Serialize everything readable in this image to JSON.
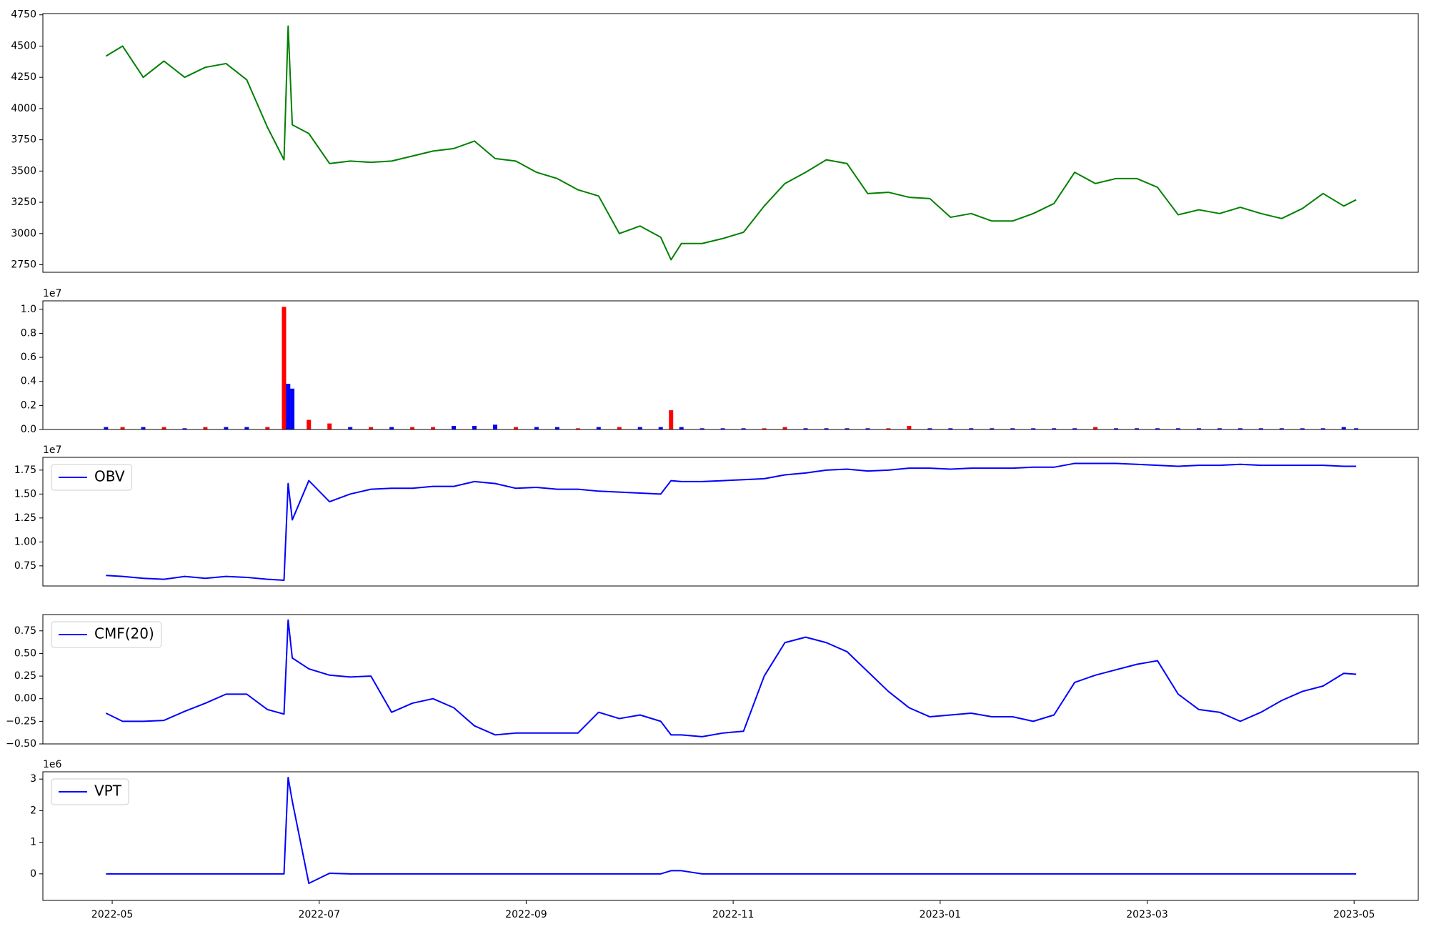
{
  "chart_data": [
    {
      "type": "line",
      "color": "#008000",
      "x": [
        -0.06,
        0.1,
        0.3,
        0.5,
        0.7,
        0.9,
        1.1,
        1.3,
        1.5,
        1.66,
        1.7,
        1.74,
        1.9,
        2.1,
        2.3,
        2.5,
        2.7,
        2.9,
        3.1,
        3.3,
        3.5,
        3.7,
        3.9,
        4.1,
        4.3,
        4.5,
        4.7,
        4.9,
        5.1,
        5.3,
        5.4,
        5.5,
        5.7,
        5.9,
        6.1,
        6.3,
        6.5,
        6.7,
        6.9,
        7.1,
        7.3,
        7.5,
        7.7,
        7.9,
        8.1,
        8.3,
        8.5,
        8.7,
        8.9,
        9.1,
        9.3,
        9.5,
        9.7,
        9.9,
        10.1,
        10.3,
        10.5,
        10.7,
        10.9,
        11.1,
        11.3,
        11.5,
        11.7,
        11.9,
        12.02
      ],
      "values": [
        4420,
        4500,
        4250,
        4380,
        4250,
        4330,
        4360,
        4230,
        3850,
        3590,
        4660,
        3870,
        3800,
        3560,
        3580,
        3570,
        3580,
        3620,
        3660,
        3680,
        3740,
        3600,
        3580,
        3490,
        3440,
        3350,
        3300,
        3000,
        3060,
        2970,
        2790,
        2920,
        2920,
        2960,
        3010,
        3220,
        3400,
        3490,
        3590,
        3560,
        3320,
        3330,
        3290,
        3280,
        3130,
        3160,
        3100,
        3100,
        3160,
        3240,
        3490,
        3400,
        3440,
        3440,
        3370,
        3150,
        3190,
        3160,
        3210,
        3160,
        3120,
        3200,
        3320,
        3220,
        3270
      ],
      "xlim": [
        -0.67,
        12.62
      ],
      "ylim": [
        2690,
        4760
      ],
      "yticks": [
        2750,
        3000,
        3250,
        3500,
        3750,
        4000,
        4250,
        4500,
        4750
      ]
    },
    {
      "type": "bar",
      "offset_label": "1e7",
      "x": [
        -0.06,
        0.1,
        0.3,
        0.5,
        0.7,
        0.9,
        1.1,
        1.3,
        1.5,
        1.66,
        1.7,
        1.74,
        1.9,
        2.1,
        2.3,
        2.5,
        2.7,
        2.9,
        3.1,
        3.3,
        3.5,
        3.7,
        3.9,
        4.1,
        4.3,
        4.5,
        4.7,
        4.9,
        5.1,
        5.3,
        5.4,
        5.5,
        5.7,
        5.9,
        6.1,
        6.3,
        6.5,
        6.7,
        6.9,
        7.1,
        7.3,
        7.5,
        7.7,
        7.9,
        8.1,
        8.3,
        8.5,
        8.7,
        8.9,
        9.1,
        9.3,
        9.5,
        9.7,
        9.9,
        10.1,
        10.3,
        10.5,
        10.7,
        10.9,
        11.1,
        11.3,
        11.5,
        11.7,
        11.9,
        12.02
      ],
      "values": [
        0.02,
        0.02,
        0.02,
        0.02,
        0.01,
        0.02,
        0.02,
        0.02,
        0.02,
        1.02,
        0.38,
        0.34,
        0.08,
        0.05,
        0.02,
        0.02,
        0.02,
        0.02,
        0.02,
        0.03,
        0.03,
        0.04,
        0.02,
        0.02,
        0.02,
        0.01,
        0.02,
        0.02,
        0.02,
        0.02,
        0.16,
        0.02,
        0.01,
        0.01,
        0.01,
        0.01,
        0.02,
        0.01,
        0.01,
        0.01,
        0.01,
        0.01,
        0.03,
        0.01,
        0.01,
        0.01,
        0.01,
        0.01,
        0.01,
        0.01,
        0.01,
        0.02,
        0.01,
        0.01,
        0.01,
        0.01,
        0.01,
        0.01,
        0.01,
        0.01,
        0.01,
        0.01,
        0.01,
        0.02,
        0.01
      ],
      "colors": [
        "blue",
        "red",
        "blue",
        "red",
        "blue",
        "red",
        "blue",
        "blue",
        "red",
        "red",
        "blue",
        "blue",
        "red",
        "red",
        "blue",
        "red",
        "blue",
        "red",
        "red",
        "blue",
        "blue",
        "blue",
        "red",
        "blue",
        "blue",
        "red",
        "blue",
        "red",
        "blue",
        "blue",
        "red",
        "blue",
        "blue",
        "blue",
        "blue",
        "red",
        "red",
        "blue",
        "blue",
        "blue",
        "blue",
        "red",
        "red",
        "blue",
        "blue",
        "blue",
        "blue",
        "blue",
        "blue",
        "blue",
        "blue",
        "red",
        "blue",
        "blue",
        "blue",
        "blue",
        "blue",
        "blue",
        "blue",
        "blue",
        "blue",
        "blue",
        "blue",
        "blue",
        "blue"
      ],
      "xlim": [
        -0.67,
        12.62
      ],
      "ylim": [
        0,
        1.07
      ],
      "yticks": [
        {
          "value": 0,
          "label": "0.0"
        },
        0.2,
        0.4,
        0.6,
        0.8,
        {
          "value": 1,
          "label": "1.0"
        }
      ]
    },
    {
      "type": "line",
      "offset_label": "1e7",
      "legend": "upper left",
      "x": [
        -0.06,
        0.1,
        0.3,
        0.5,
        0.7,
        0.9,
        1.1,
        1.3,
        1.5,
        1.66,
        1.7,
        1.74,
        1.9,
        2.1,
        2.3,
        2.5,
        2.7,
        2.9,
        3.1,
        3.3,
        3.5,
        3.7,
        3.9,
        4.1,
        4.3,
        4.5,
        4.7,
        4.9,
        5.1,
        5.3,
        5.4,
        5.5,
        5.7,
        5.9,
        6.1,
        6.3,
        6.5,
        6.7,
        6.9,
        7.1,
        7.3,
        7.5,
        7.7,
        7.9,
        8.1,
        8.3,
        8.5,
        8.7,
        8.9,
        9.1,
        9.3,
        9.5,
        9.7,
        9.9,
        10.1,
        10.3,
        10.5,
        10.7,
        10.9,
        11.1,
        11.3,
        11.5,
        11.7,
        11.9,
        12.02
      ],
      "series": [
        {
          "name": "OBV",
          "color": "#0000ff",
          "values": [
            0.65,
            0.64,
            0.62,
            0.61,
            0.64,
            0.62,
            0.64,
            0.63,
            0.61,
            0.6,
            1.61,
            1.23,
            1.64,
            1.42,
            1.5,
            1.55,
            1.56,
            1.56,
            1.58,
            1.58,
            1.63,
            1.61,
            1.56,
            1.57,
            1.55,
            1.55,
            1.53,
            1.52,
            1.51,
            1.5,
            1.64,
            1.63,
            1.63,
            1.64,
            1.65,
            1.66,
            1.7,
            1.72,
            1.75,
            1.76,
            1.74,
            1.75,
            1.77,
            1.77,
            1.76,
            1.77,
            1.77,
            1.77,
            1.78,
            1.78,
            1.82,
            1.82,
            1.82,
            1.81,
            1.8,
            1.79,
            1.8,
            1.8,
            1.81,
            1.8,
            1.8,
            1.8,
            1.8,
            1.79,
            1.79
          ]
        }
      ],
      "xlim": [
        -0.67,
        12.62
      ],
      "ylim": [
        0.54,
        1.883
      ],
      "yticks": [
        0.75,
        {
          "value": 1,
          "label": "1.00"
        },
        1.25,
        {
          "value": 1.5,
          "label": "1.50"
        },
        1.75
      ]
    },
    {
      "type": "line",
      "legend": "upper left",
      "x": [
        -0.06,
        0.1,
        0.3,
        0.5,
        0.7,
        0.9,
        1.1,
        1.3,
        1.5,
        1.66,
        1.7,
        1.74,
        1.9,
        2.1,
        2.3,
        2.5,
        2.7,
        2.9,
        3.1,
        3.3,
        3.5,
        3.7,
        3.9,
        4.1,
        4.3,
        4.5,
        4.7,
        4.9,
        5.1,
        5.3,
        5.4,
        5.5,
        5.7,
        5.9,
        6.1,
        6.3,
        6.5,
        6.7,
        6.9,
        7.1,
        7.3,
        7.5,
        7.7,
        7.9,
        8.1,
        8.3,
        8.5,
        8.7,
        8.9,
        9.1,
        9.3,
        9.5,
        9.7,
        9.9,
        10.1,
        10.3,
        10.5,
        10.7,
        10.9,
        11.1,
        11.3,
        11.5,
        11.7,
        11.9,
        12.02
      ],
      "series": [
        {
          "name": "CMF(20)",
          "color": "#0000ff",
          "values": [
            -0.16,
            -0.25,
            -0.25,
            -0.24,
            -0.14,
            -0.05,
            0.05,
            0.05,
            -0.12,
            -0.17,
            0.87,
            0.45,
            0.33,
            0.26,
            0.24,
            0.25,
            -0.15,
            -0.05,
            0,
            -0.1,
            -0.3,
            -0.4,
            -0.38,
            -0.38,
            -0.38,
            -0.38,
            -0.15,
            -0.22,
            -0.18,
            -0.25,
            -0.4,
            -0.4,
            -0.42,
            -0.38,
            -0.36,
            0.25,
            0.62,
            0.68,
            0.62,
            0.52,
            0.3,
            0.08,
            -0.1,
            -0.2,
            -0.18,
            -0.16,
            -0.2,
            -0.2,
            -0.25,
            -0.18,
            0.18,
            0.26,
            0.32,
            0.38,
            0.42,
            0.05,
            -0.12,
            -0.15,
            -0.25,
            -0.15,
            -0.02,
            0.08,
            0.14,
            0.28,
            0.27
          ]
        }
      ],
      "xlim": [
        -0.67,
        12.62
      ],
      "ylim": [
        -0.5,
        0.93
      ],
      "yticks": [
        {
          "value": -0.5,
          "label": "−0.50"
        },
        {
          "value": -0.25,
          "label": "−0.25"
        },
        {
          "value": 0,
          "label": "0.00"
        },
        0.25,
        {
          "value": 0.5,
          "label": "0.50"
        },
        0.75
      ]
    },
    {
      "type": "line",
      "offset_label": "1e6",
      "legend": "upper left",
      "x": [
        -0.06,
        0.1,
        0.3,
        0.5,
        0.7,
        0.9,
        1.1,
        1.3,
        1.5,
        1.66,
        1.7,
        1.74,
        1.9,
        2.1,
        2.3,
        2.5,
        2.7,
        2.9,
        3.1,
        3.3,
        3.5,
        3.7,
        3.9,
        4.1,
        4.3,
        4.5,
        4.7,
        4.9,
        5.1,
        5.3,
        5.4,
        5.5,
        5.7,
        5.9,
        6.1,
        6.3,
        6.5,
        6.7,
        6.9,
        7.1,
        7.3,
        7.5,
        7.7,
        7.9,
        8.1,
        8.3,
        8.5,
        8.7,
        8.9,
        9.1,
        9.3,
        9.5,
        9.7,
        9.9,
        10.1,
        10.3,
        10.5,
        10.7,
        10.9,
        11.1,
        11.3,
        11.5,
        11.7,
        11.9,
        12.02
      ],
      "series": [
        {
          "name": "VPT",
          "color": "#0000ff",
          "values": [
            0,
            0,
            0,
            0,
            0,
            0,
            0,
            0,
            0,
            0,
            3.05,
            2.3,
            -0.3,
            0.02,
            0,
            0,
            0,
            0,
            0,
            0,
            0,
            0,
            0,
            0,
            0,
            0,
            0,
            0,
            0,
            0,
            0.1,
            0.1,
            0,
            0,
            0,
            0,
            0,
            0,
            0,
            0,
            0,
            0,
            0,
            0,
            0,
            0,
            0,
            0,
            0,
            0,
            0,
            0,
            0,
            0,
            0,
            0,
            0,
            0,
            0,
            0,
            0,
            0,
            0,
            0,
            0
          ]
        }
      ],
      "xlim": [
        -0.67,
        12.62
      ],
      "ylim": [
        -0.84,
        3.23
      ],
      "yticks": [
        0,
        1,
        2,
        3
      ],
      "xticks": [
        {
          "value": 0,
          "label": "2022-05"
        },
        {
          "value": 2,
          "label": "2022-07"
        },
        {
          "value": 4,
          "label": "2022-09"
        },
        {
          "value": 6,
          "label": "2022-11"
        },
        {
          "value": 8,
          "label": "2023-01"
        },
        {
          "value": 10,
          "label": "2023-03"
        },
        {
          "value": 12,
          "label": "2023-05"
        }
      ]
    }
  ]
}
